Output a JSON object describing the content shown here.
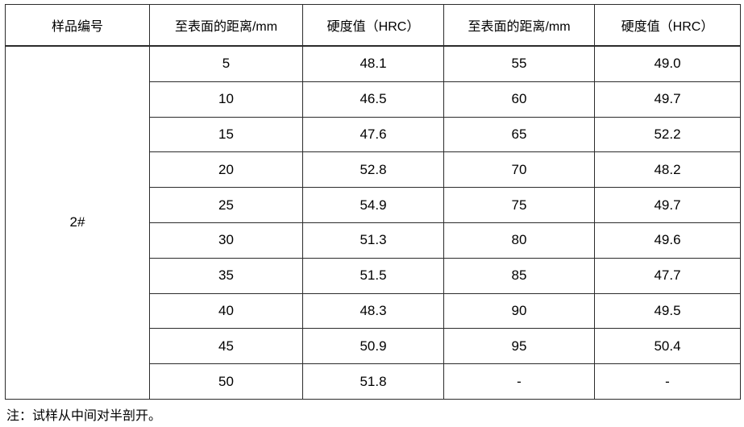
{
  "table": {
    "headers": {
      "sample": "样品编号",
      "distance1": "至表面的距离/mm",
      "hardness1": "硬度值（HRC）",
      "distance2": "至表面的距离/mm",
      "hardness2": "硬度值（HRC）"
    },
    "sample_id": "2#",
    "rows": [
      [
        "5",
        "48.1",
        "55",
        "49.0"
      ],
      [
        "10",
        "46.5",
        "60",
        "49.7"
      ],
      [
        "15",
        "47.6",
        "65",
        "52.2"
      ],
      [
        "20",
        "52.8",
        "70",
        "48.2"
      ],
      [
        "25",
        "54.9",
        "75",
        "49.7"
      ],
      [
        "30",
        "51.3",
        "80",
        "49.6"
      ],
      [
        "35",
        "51.5",
        "85",
        "47.7"
      ],
      [
        "40",
        "48.3",
        "90",
        "49.5"
      ],
      [
        "45",
        "50.9",
        "95",
        "50.4"
      ],
      [
        "50",
        "51.8",
        "-",
        "-"
      ]
    ]
  },
  "note": "注：试样从中间对半剖开。",
  "colors": {
    "border": "#2b2b2b",
    "text": "#000000",
    "background": "#ffffff"
  }
}
